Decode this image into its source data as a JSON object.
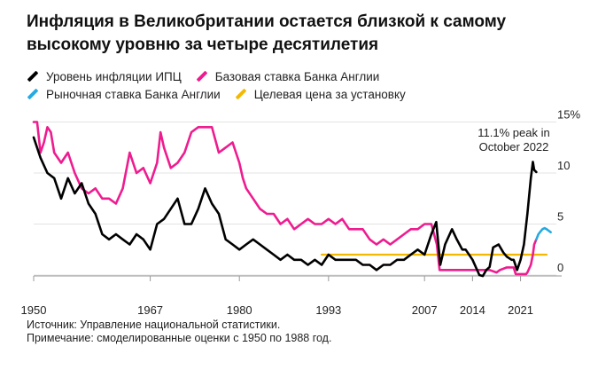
{
  "title": "Инфляция в Великобритании остается близкой к самому высокому уровню за четыре десятилетия",
  "legend": [
    {
      "label": "Уровень инфляции ИПЦ",
      "color": "#000000"
    },
    {
      "label": "Базовая ставка Банка Англии",
      "color": "#ee1c8f"
    },
    {
      "label": "Рыночная ставка Банка Англии",
      "color": "#26aae1"
    },
    {
      "label": "Целевая цена за установку",
      "color": "#f3b900"
    }
  ],
  "annotation": {
    "line1": "11.1% peak in",
    "line2": "October 2022"
  },
  "source": "Источник: Управление национальной статистики.",
  "note": "Примечание: смоделированные оценки с 1950 по 1988 год.",
  "chart_data": {
    "type": "line",
    "title": "Инфляция в Великобритании остается близкой к самому высокому уровню за четыре десятилетия",
    "xlim": [
      1950,
      2027
    ],
    "ylim": [
      -2,
      15
    ],
    "yticks": [
      {
        "value": 0,
        "label": "0"
      },
      {
        "value": 5,
        "label": "5"
      },
      {
        "value": 10,
        "label": "10"
      },
      {
        "value": 15,
        "label": "15%"
      }
    ],
    "xticks": [
      "1950",
      "1967",
      "1980",
      "1993",
      "2007",
      "2014",
      "2021"
    ],
    "series": [
      {
        "name": "Уровень инфляции ИПЦ",
        "color": "#000000",
        "x": [
          1950,
          1951,
          1952,
          1953,
          1954,
          1955,
          1956,
          1957,
          1958,
          1959,
          1960,
          1961,
          1962,
          1963,
          1964,
          1965,
          1966,
          1967,
          1968,
          1969,
          1970,
          1971,
          1972,
          1973,
          1974,
          1975,
          1976,
          1977,
          1978,
          1979,
          1980,
          1981,
          1982,
          1983,
          1984,
          1985,
          1986,
          1987,
          1988,
          1989,
          1990,
          1991,
          1992,
          1993,
          1994,
          1995,
          1996,
          1997,
          1998,
          1999,
          2000,
          2001,
          2002,
          2003,
          2004,
          2005,
          2006,
          2007,
          2008,
          2008.7,
          2009.3,
          2010,
          2011,
          2011.7,
          2012.5,
          2013,
          2014,
          2015,
          2015.5,
          2016,
          2016.5,
          2017,
          2017.8,
          2018.5,
          2019,
          2019.7,
          2020,
          2020.5,
          2021,
          2021.5,
          2022,
          2022.5,
          2022.8,
          2023,
          2023.3
        ],
        "values": [
          13.5,
          11.5,
          10.0,
          9.5,
          7.5,
          9.5,
          8.0,
          9.0,
          7.0,
          6.0,
          4.0,
          3.5,
          4.0,
          3.5,
          3.0,
          4.0,
          3.5,
          2.5,
          5.0,
          5.5,
          6.5,
          7.5,
          5.0,
          5.0,
          6.5,
          8.5,
          7.0,
          6.0,
          3.5,
          3.0,
          2.5,
          3.0,
          3.5,
          3.0,
          2.5,
          2.0,
          1.5,
          2.0,
          1.5,
          1.5,
          1.0,
          1.5,
          1.0,
          2.0,
          1.5,
          1.5,
          1.5,
          1.5,
          1.0,
          1.0,
          0.5,
          1.0,
          1.0,
          1.5,
          1.5,
          2.0,
          2.5,
          2.0,
          4.0,
          5.2,
          1.0,
          3.0,
          4.5,
          3.5,
          2.5,
          2.5,
          1.5,
          0.0,
          -0.1,
          0.5,
          0.8,
          2.7,
          3.0,
          2.2,
          1.8,
          1.5,
          1.5,
          0.5,
          1.5,
          3.0,
          6.0,
          9.5,
          11.1,
          10.3,
          10.1
        ]
      },
      {
        "name": "Базовая ставка Банка Англии",
        "color": "#ee1c8f",
        "x": [
          1950,
          1950.5,
          1951,
          1951.5,
          1952,
          1952.5,
          1953,
          1954,
          1955,
          1956,
          1957,
          1958,
          1959,
          1960,
          1961,
          1962,
          1963,
          1964,
          1965,
          1966,
          1967,
          1968,
          1968.5,
          1969,
          1970,
          1971,
          1972,
          1973,
          1974,
          1975,
          1976,
          1977,
          1978,
          1979,
          1980,
          1980.5,
          1981,
          1982,
          1983,
          1984,
          1985,
          1986,
          1987,
          1988,
          1989,
          1990,
          1991,
          1992,
          1993,
          1994,
          1995,
          1996,
          1997,
          1998,
          1999,
          2000,
          2001,
          2002,
          2003,
          2004,
          2005,
          2006,
          2007,
          2008,
          2008.8,
          2009.2,
          2016.5,
          2017.5,
          2018,
          2019,
          2020,
          2020.3,
          2021.8,
          2022,
          2022.5,
          2022.8,
          2023,
          2023.3
        ],
        "values": [
          15.0,
          15.0,
          12.0,
          13.0,
          14.5,
          14.0,
          12.0,
          11.0,
          12.0,
          10.0,
          8.5,
          8.0,
          8.5,
          7.5,
          7.5,
          7.0,
          8.5,
          12.0,
          10.0,
          10.5,
          9.0,
          11.0,
          14.0,
          12.5,
          10.5,
          11.0,
          12.0,
          14.0,
          14.5,
          14.5,
          14.5,
          12.0,
          12.5,
          13.0,
          11.0,
          9.5,
          8.5,
          7.5,
          6.5,
          6.0,
          6.0,
          5.0,
          5.5,
          4.5,
          5.0,
          5.5,
          5.0,
          5.0,
          5.5,
          5.0,
          5.5,
          4.5,
          4.5,
          4.5,
          3.5,
          3.0,
          3.5,
          3.0,
          3.5,
          4.0,
          4.5,
          4.5,
          5.0,
          5.0,
          3.0,
          0.5,
          0.5,
          0.25,
          0.5,
          0.75,
          0.75,
          0.1,
          0.1,
          0.25,
          1.0,
          2.0,
          3.0,
          3.5
        ]
      },
      {
        "name": "Рыночная ставка Банка Англии",
        "color": "#26aae1",
        "x": [
          2023.3,
          2023.6,
          2023.9,
          2024.2,
          2024.5,
          2024.8,
          2025.1,
          2025.4
        ],
        "values": [
          3.5,
          4.0,
          4.25,
          4.5,
          4.6,
          4.5,
          4.35,
          4.2
        ]
      },
      {
        "name": "Целевая цена за установку",
        "color": "#f3b900",
        "x": [
          1992,
          2024.8
        ],
        "values": [
          2,
          2
        ]
      }
    ],
    "annotations": [
      {
        "text": "11.1% peak in October 2022",
        "x": 2022.8,
        "y": 11.1
      }
    ]
  }
}
